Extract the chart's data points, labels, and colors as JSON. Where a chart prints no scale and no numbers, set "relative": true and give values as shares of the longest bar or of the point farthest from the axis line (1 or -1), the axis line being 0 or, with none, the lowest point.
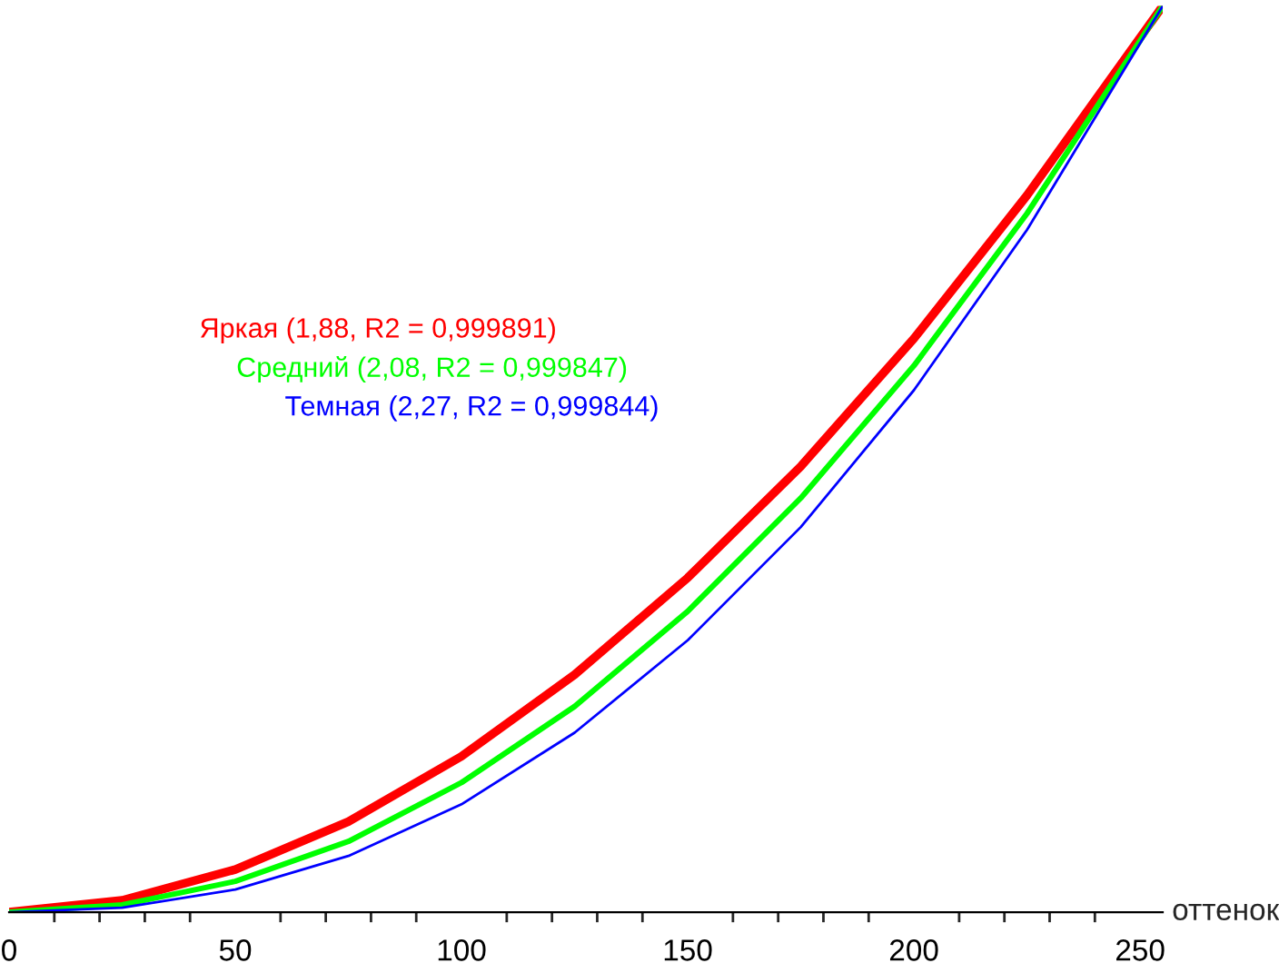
{
  "chart_data": {
    "type": "line",
    "relative": true,
    "xlabel": "оттенок",
    "x": [
      0,
      25,
      50,
      75,
      100,
      125,
      150,
      175,
      200,
      225,
      255
    ],
    "xlim": [
      0,
      255
    ],
    "xticks": [
      0,
      {
        "value": 10,
        "label": null
      },
      {
        "value": 20,
        "label": null
      },
      {
        "value": 30,
        "label": null
      },
      {
        "value": 40,
        "label": null
      },
      50,
      {
        "value": 60,
        "label": null
      },
      {
        "value": 70,
        "label": null
      },
      {
        "value": 80,
        "label": null
      },
      {
        "value": 90,
        "label": null
      },
      100,
      {
        "value": 110,
        "label": null
      },
      {
        "value": 120,
        "label": null
      },
      {
        "value": 130,
        "label": null
      },
      {
        "value": 140,
        "label": null
      },
      150,
      {
        "value": 160,
        "label": null
      },
      {
        "value": 170,
        "label": null
      },
      {
        "value": 180,
        "label": null
      },
      {
        "value": 190,
        "label": null
      },
      200,
      {
        "value": 210,
        "label": null
      },
      {
        "value": 220,
        "label": null
      },
      {
        "value": 230,
        "label": null
      },
      {
        "value": 240,
        "label": null
      },
      250
    ],
    "tick_labels": "x",
    "series": [
      {
        "name": "Яркая (1,88, R2 = 0,999891)",
        "color": "#ff0000",
        "values": [
          0,
          0.013,
          0.047,
          0.1,
          0.172,
          0.262,
          0.369,
          0.492,
          0.633,
          0.791,
          1
        ]
      },
      {
        "name": "Средний (2,08, R2 = 0,999847)",
        "color": "#00ff00",
        "values": [
          0,
          0.008,
          0.034,
          0.078,
          0.143,
          0.227,
          0.332,
          0.457,
          0.603,
          0.771,
          1
        ]
      },
      {
        "name": "Темная (2,27, R2 = 0,999844)",
        "color": "#0000ff",
        "values": [
          0,
          0.005,
          0.025,
          0.062,
          0.119,
          0.198,
          0.3,
          0.425,
          0.576,
          0.753,
          1
        ]
      }
    ]
  }
}
